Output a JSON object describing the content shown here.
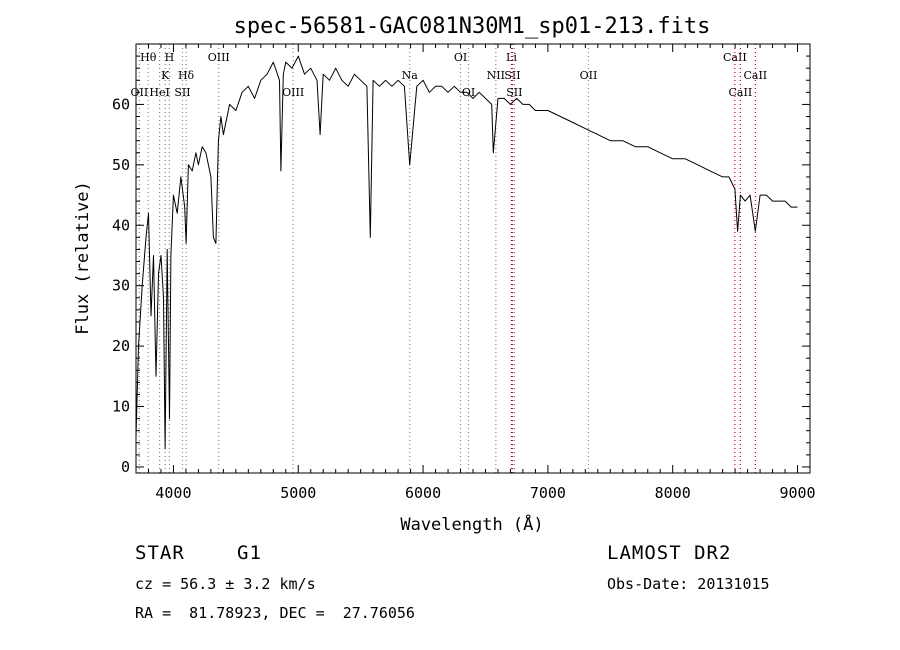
{
  "chart_data": {
    "type": "line",
    "title": "spec-56581-GAC081N30M1_sp01-213.fits",
    "xlabel": "Wavelength (Å)",
    "ylabel": "Flux (relative)",
    "xlim": [
      3700,
      9100
    ],
    "ylim": [
      -1,
      70
    ],
    "x_ticks": [
      4000,
      5000,
      6000,
      7000,
      8000,
      9000
    ],
    "y_ticks": [
      0,
      10,
      20,
      30,
      40,
      50,
      60
    ],
    "grid": false,
    "series": [
      {
        "x": [
          3700,
          3720,
          3750,
          3780,
          3800,
          3820,
          3840,
          3860,
          3880,
          3900,
          3920,
          3933,
          3950,
          3968,
          3980,
          4000,
          4030,
          4060,
          4090,
          4101,
          4120,
          4150,
          4180,
          4200,
          4230,
          4260,
          4300,
          4320,
          4340,
          4360,
          4380,
          4400,
          4450,
          4500,
          4550,
          4600,
          4650,
          4700,
          4750,
          4800,
          4850,
          4861,
          4880,
          4900,
          4950,
          5000,
          5050,
          5100,
          5150,
          5175,
          5200,
          5250,
          5300,
          5350,
          5400,
          5450,
          5500,
          5550,
          5577,
          5600,
          5650,
          5700,
          5750,
          5800,
          5850,
          5893,
          5950,
          6000,
          6050,
          6100,
          6150,
          6200,
          6250,
          6300,
          6350,
          6400,
          6450,
          6500,
          6550,
          6563,
          6600,
          6650,
          6700,
          6750,
          6800,
          6850,
          6900,
          6950,
          7000,
          7100,
          7200,
          7300,
          7400,
          7500,
          7600,
          7700,
          7800,
          7900,
          8000,
          8100,
          8200,
          8300,
          8400,
          8450,
          8498,
          8520,
          8542,
          8580,
          8620,
          8662,
          8700,
          8750,
          8800,
          8850,
          8900,
          8950,
          9000
        ],
        "y": [
          5,
          20,
          30,
          38,
          42,
          25,
          35,
          15,
          32,
          35,
          28,
          3,
          36,
          8,
          35,
          45,
          42,
          48,
          43,
          37,
          50,
          49,
          52,
          50,
          53,
          52,
          48,
          38,
          37,
          54,
          58,
          55,
          60,
          59,
          62,
          63,
          61,
          64,
          65,
          67,
          64,
          49,
          65,
          67,
          66,
          68,
          65,
          66,
          64,
          55,
          65,
          64,
          66,
          64,
          63,
          65,
          64,
          63,
          38,
          64,
          63,
          64,
          63,
          64,
          63,
          50,
          63,
          64,
          62,
          63,
          63,
          62,
          63,
          62,
          62,
          61,
          62,
          61,
          60,
          52,
          61,
          61,
          60,
          61,
          60,
          60,
          59,
          59,
          59,
          58,
          57,
          56,
          55,
          54,
          54,
          53,
          53,
          52,
          51,
          51,
          50,
          49,
          48,
          48,
          46,
          39,
          45,
          44,
          45,
          39,
          45,
          45,
          44,
          44,
          44,
          43,
          43
        ]
      }
    ],
    "line_markers": [
      {
        "label": "Hθ",
        "x": 3798,
        "color": "#888888",
        "row": 1
      },
      {
        "label": "OII",
        "x": 3727,
        "color": "#888888",
        "row": 3
      },
      {
        "label": "H",
        "x": 3968,
        "color": "#888888",
        "row": 1
      },
      {
        "label": "K",
        "x": 3934,
        "color": "#888888",
        "row": 2
      },
      {
        "label": "HeI",
        "x": 3889,
        "color": "#888888",
        "row": 3
      },
      {
        "label": "Hδ",
        "x": 4101,
        "color": "#888888",
        "row": 2
      },
      {
        "label": "SII",
        "x": 4072,
        "color": "#888888",
        "row": 3
      },
      {
        "label": "OIII",
        "x": 4363,
        "color": "#888888",
        "row": 1
      },
      {
        "label": "OIII",
        "x": 4959,
        "color": "#888888",
        "row": 3
      },
      {
        "label": "Na",
        "x": 5893,
        "color": "#888888",
        "row": 2
      },
      {
        "label": "OI",
        "x": 6300,
        "color": "#888888",
        "row": 1
      },
      {
        "label": "OI",
        "x": 6364,
        "color": "#888888",
        "row": 3
      },
      {
        "label": "Li",
        "x": 6708,
        "color": "#cc0000",
        "row": 1
      },
      {
        "label": "NII",
        "x": 6583,
        "color": "#888888",
        "row": 2
      },
      {
        "label": "SII",
        "x": 6716,
        "color": "#cc0000",
        "row": 2
      },
      {
        "label": "SII",
        "x": 6731,
        "color": "#888888",
        "row": 3
      },
      {
        "label": "OII",
        "x": 7325,
        "color": "#888888",
        "row": 2
      },
      {
        "label": "CaII",
        "x": 8498,
        "color": "#cc0000",
        "row": 1
      },
      {
        "label": "CaII",
        "x": 8662,
        "color": "#cc0000",
        "row": 2
      },
      {
        "label": "CaII",
        "x": 8542,
        "color": "#cc0000",
        "row": 3
      }
    ]
  },
  "info": {
    "class_label": "STAR",
    "subclass": "G1",
    "survey": "LAMOST DR2",
    "cz": "cz = 56.3 ± 3.2 km/s",
    "obs_date": "Obs-Date: 20131015",
    "coords": "RA =  81.78923, DEC =  27.76056"
  }
}
